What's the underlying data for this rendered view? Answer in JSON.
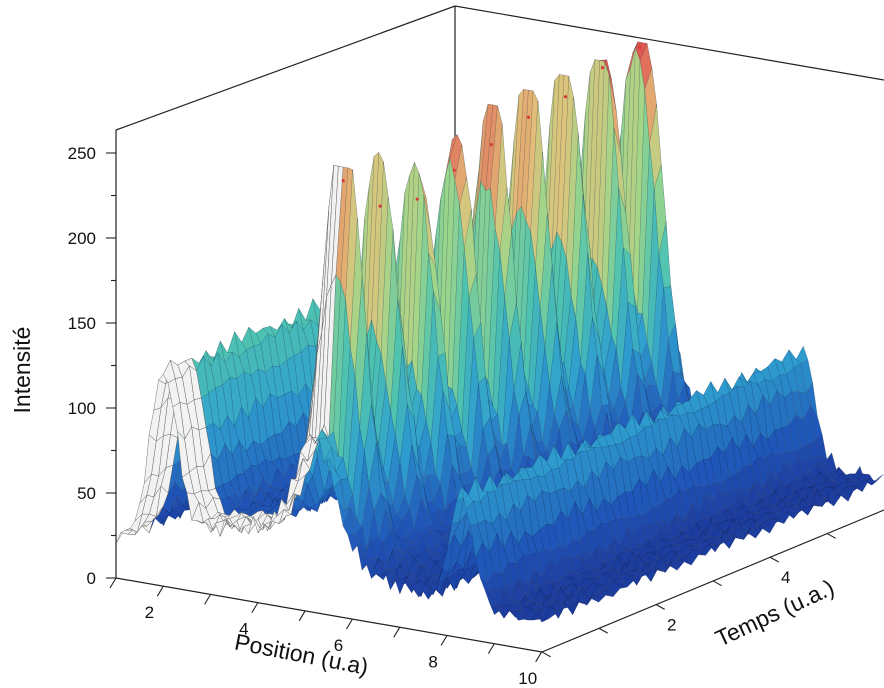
{
  "chart_data": {
    "type": "surface-3d",
    "title": "",
    "zlabel": "Intensité",
    "xlabel": "Position (u.a)",
    "ylabel": "Temps (u.a.)",
    "z_ticks": [
      "0",
      "50",
      "100",
      "150",
      "200",
      "250"
    ],
    "x_ticks": [
      "2",
      "4",
      "6",
      "8",
      "10"
    ],
    "y_ticks": [
      "2",
      "4"
    ],
    "zlim": [
      0,
      250
    ],
    "xlim": [
      1,
      10
    ],
    "ylim": [
      0,
      6
    ],
    "grid": false,
    "legend": "none",
    "colormap": [
      "#1a2a8c",
      "#1f55b8",
      "#2f9fcf",
      "#4fc3b0",
      "#9fd68a",
      "#e2c27a",
      "#e05050"
    ],
    "ridges": [
      {
        "name": "",
        "position": 5.2,
        "peak_intensity": 247,
        "time_start": 0.4,
        "time_end": 1.6,
        "baseline": 42
      },
      {
        "name": "",
        "position": 5.2,
        "peak_intensity": 65,
        "time_start": 1.6,
        "time_end": 6.0,
        "baseline": 40
      },
      {
        "name": "",
        "position": 2.0,
        "peak_intensity": 105,
        "time_start": 0.0,
        "time_end": 6.0,
        "baseline": 20
      },
      {
        "name": "",
        "position": 8.3,
        "peak_intensity": 70,
        "time_start": 0.0,
        "time_end": 6.0,
        "baseline": 20
      }
    ],
    "peaks_along_time": [
      {
        "time": 0.5,
        "intensity": 247
      },
      {
        "time": 1.15,
        "intensity": 223
      },
      {
        "time": 1.8,
        "intensity": 218
      },
      {
        "time": 2.45,
        "intensity": 226
      },
      {
        "time": 3.1,
        "intensity": 232
      },
      {
        "time": 3.75,
        "intensity": 239
      },
      {
        "time": 4.4,
        "intensity": 242
      },
      {
        "time": 5.05,
        "intensity": 250
      },
      {
        "time": 5.7,
        "intensity": 253
      }
    ]
  }
}
